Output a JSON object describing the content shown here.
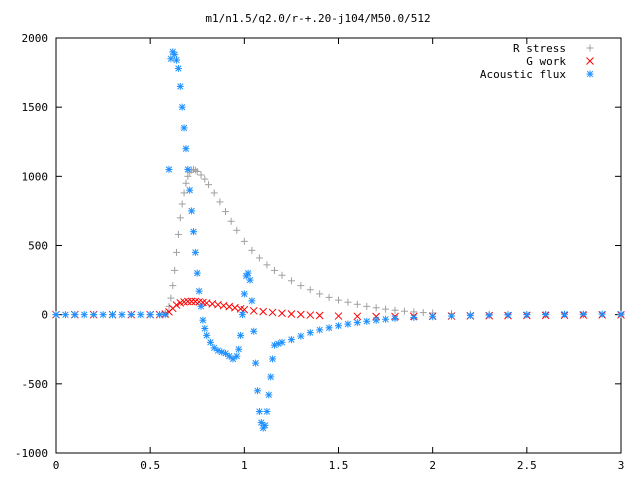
{
  "chart_data": {
    "type": "scatter",
    "title": "m1/n1.5/q2.0/r-+.20-j104/M50.0/512",
    "xlabel": "",
    "ylabel": "",
    "xlim": [
      0,
      3
    ],
    "ylim": [
      -1000,
      2000
    ],
    "x_ticks": [
      0,
      0.5,
      1,
      1.5,
      2,
      2.5,
      3
    ],
    "x_tick_labels": [
      "0",
      "0.5",
      "1",
      "1.5",
      "2",
      "2.5",
      "3"
    ],
    "y_ticks": [
      -1000,
      -500,
      0,
      500,
      1000,
      1500,
      2000
    ],
    "y_tick_labels": [
      "-1000",
      "-500",
      "0",
      "500",
      "1000",
      "1500",
      "2000"
    ],
    "grid": false,
    "legend_position": "top-right",
    "series": [
      {
        "name": "R stress",
        "marker": "plus",
        "color": "#a0a0a0",
        "points": [
          [
            0.0,
            0
          ],
          [
            0.1,
            0
          ],
          [
            0.2,
            0
          ],
          [
            0.3,
            0
          ],
          [
            0.4,
            0
          ],
          [
            0.5,
            0
          ],
          [
            0.55,
            0
          ],
          [
            0.58,
            10
          ],
          [
            0.6,
            60
          ],
          [
            0.61,
            120
          ],
          [
            0.62,
            210
          ],
          [
            0.63,
            320
          ],
          [
            0.64,
            450
          ],
          [
            0.65,
            580
          ],
          [
            0.66,
            700
          ],
          [
            0.67,
            800
          ],
          [
            0.68,
            880
          ],
          [
            0.69,
            950
          ],
          [
            0.7,
            1000
          ],
          [
            0.71,
            1030
          ],
          [
            0.72,
            1045
          ],
          [
            0.73,
            1050
          ],
          [
            0.74,
            1045
          ],
          [
            0.75,
            1035
          ],
          [
            0.77,
            1010
          ],
          [
            0.79,
            980
          ],
          [
            0.81,
            940
          ],
          [
            0.84,
            880
          ],
          [
            0.87,
            815
          ],
          [
            0.9,
            745
          ],
          [
            0.93,
            675
          ],
          [
            0.96,
            610
          ],
          [
            1.0,
            530
          ],
          [
            1.04,
            465
          ],
          [
            1.08,
            410
          ],
          [
            1.12,
            360
          ],
          [
            1.16,
            320
          ],
          [
            1.2,
            285
          ],
          [
            1.25,
            245
          ],
          [
            1.3,
            210
          ],
          [
            1.35,
            180
          ],
          [
            1.4,
            150
          ],
          [
            1.45,
            125
          ],
          [
            1.5,
            105
          ],
          [
            1.55,
            90
          ],
          [
            1.6,
            75
          ],
          [
            1.65,
            60
          ],
          [
            1.7,
            50
          ],
          [
            1.75,
            40
          ],
          [
            1.8,
            32
          ],
          [
            1.85,
            25
          ],
          [
            1.9,
            20
          ],
          [
            1.95,
            15
          ],
          [
            2.0,
            12
          ],
          [
            2.1,
            8
          ],
          [
            2.2,
            5
          ],
          [
            2.3,
            3
          ],
          [
            2.4,
            2
          ],
          [
            2.5,
            1
          ],
          [
            2.6,
            0
          ],
          [
            2.8,
            0
          ],
          [
            3.0,
            0
          ]
        ]
      },
      {
        "name": "G work",
        "marker": "cross",
        "color": "#ff0000",
        "points": [
          [
            0.0,
            0
          ],
          [
            0.1,
            0
          ],
          [
            0.2,
            0
          ],
          [
            0.3,
            0
          ],
          [
            0.4,
            0
          ],
          [
            0.5,
            0
          ],
          [
            0.55,
            0
          ],
          [
            0.58,
            5
          ],
          [
            0.6,
            20
          ],
          [
            0.62,
            45
          ],
          [
            0.64,
            70
          ],
          [
            0.66,
            85
          ],
          [
            0.68,
            92
          ],
          [
            0.7,
            95
          ],
          [
            0.72,
            96
          ],
          [
            0.74,
            95
          ],
          [
            0.76,
            92
          ],
          [
            0.78,
            88
          ],
          [
            0.8,
            84
          ],
          [
            0.83,
            78
          ],
          [
            0.86,
            72
          ],
          [
            0.89,
            65
          ],
          [
            0.92,
            58
          ],
          [
            0.95,
            50
          ],
          [
            0.98,
            42
          ],
          [
            1.0,
            36
          ],
          [
            1.05,
            28
          ],
          [
            1.1,
            22
          ],
          [
            1.15,
            16
          ],
          [
            1.2,
            10
          ],
          [
            1.25,
            5
          ],
          [
            1.3,
            1
          ],
          [
            1.35,
            -3
          ],
          [
            1.4,
            -6
          ],
          [
            1.5,
            -10
          ],
          [
            1.6,
            -12
          ],
          [
            1.7,
            -13
          ],
          [
            1.8,
            -13
          ],
          [
            1.9,
            -12
          ],
          [
            2.0,
            -11
          ],
          [
            2.1,
            -10
          ],
          [
            2.2,
            -9
          ],
          [
            2.3,
            -8
          ],
          [
            2.4,
            -7
          ],
          [
            2.5,
            -6
          ],
          [
            2.6,
            -5
          ],
          [
            2.7,
            -4
          ],
          [
            2.8,
            -3
          ],
          [
            2.9,
            -2
          ],
          [
            3.0,
            -2
          ]
        ]
      },
      {
        "name": "Acoustic flux",
        "marker": "star",
        "color": "#1e90ff",
        "points": [
          [
            0.0,
            0
          ],
          [
            0.05,
            0
          ],
          [
            0.1,
            0
          ],
          [
            0.15,
            0
          ],
          [
            0.2,
            0
          ],
          [
            0.25,
            0
          ],
          [
            0.3,
            0
          ],
          [
            0.35,
            0
          ],
          [
            0.4,
            0
          ],
          [
            0.45,
            0
          ],
          [
            0.5,
            0
          ],
          [
            0.55,
            0
          ],
          [
            0.58,
            0
          ],
          [
            0.6,
            1050
          ],
          [
            0.61,
            1850
          ],
          [
            0.62,
            1900
          ],
          [
            0.63,
            1880
          ],
          [
            0.64,
            1840
          ],
          [
            0.65,
            1780
          ],
          [
            0.66,
            1650
          ],
          [
            0.67,
            1500
          ],
          [
            0.68,
            1350
          ],
          [
            0.69,
            1200
          ],
          [
            0.7,
            1050
          ],
          [
            0.71,
            900
          ],
          [
            0.72,
            750
          ],
          [
            0.73,
            600
          ],
          [
            0.74,
            450
          ],
          [
            0.75,
            300
          ],
          [
            0.76,
            170
          ],
          [
            0.77,
            60
          ],
          [
            0.78,
            -40
          ],
          [
            0.79,
            -100
          ],
          [
            0.8,
            -150
          ],
          [
            0.82,
            -200
          ],
          [
            0.84,
            -240
          ],
          [
            0.86,
            -260
          ],
          [
            0.88,
            -270
          ],
          [
            0.9,
            -280
          ],
          [
            0.92,
            -300
          ],
          [
            0.94,
            -320
          ],
          [
            0.96,
            -300
          ],
          [
            0.97,
            -250
          ],
          [
            0.98,
            -150
          ],
          [
            0.99,
            0
          ],
          [
            1.0,
            150
          ],
          [
            1.01,
            280
          ],
          [
            1.02,
            300
          ],
          [
            1.03,
            250
          ],
          [
            1.04,
            100
          ],
          [
            1.05,
            -120
          ],
          [
            1.06,
            -350
          ],
          [
            1.07,
            -550
          ],
          [
            1.08,
            -700
          ],
          [
            1.09,
            -780
          ],
          [
            1.1,
            -820
          ],
          [
            1.11,
            -800
          ],
          [
            1.12,
            -700
          ],
          [
            1.13,
            -580
          ],
          [
            1.14,
            -450
          ],
          [
            1.15,
            -320
          ],
          [
            1.16,
            -220
          ],
          [
            1.18,
            -210
          ],
          [
            1.2,
            -200
          ],
          [
            1.25,
            -180
          ],
          [
            1.3,
            -155
          ],
          [
            1.35,
            -130
          ],
          [
            1.4,
            -110
          ],
          [
            1.45,
            -95
          ],
          [
            1.5,
            -80
          ],
          [
            1.55,
            -68
          ],
          [
            1.6,
            -57
          ],
          [
            1.65,
            -48
          ],
          [
            1.7,
            -40
          ],
          [
            1.75,
            -33
          ],
          [
            1.8,
            -27
          ],
          [
            1.9,
            -20
          ],
          [
            2.0,
            -15
          ],
          [
            2.1,
            -10
          ],
          [
            2.2,
            -7
          ],
          [
            2.3,
            -4
          ],
          [
            2.4,
            -2
          ],
          [
            2.5,
            0
          ],
          [
            2.6,
            2
          ],
          [
            2.7,
            3
          ],
          [
            2.8,
            4
          ],
          [
            2.9,
            4
          ],
          [
            3.0,
            4
          ]
        ]
      }
    ]
  }
}
